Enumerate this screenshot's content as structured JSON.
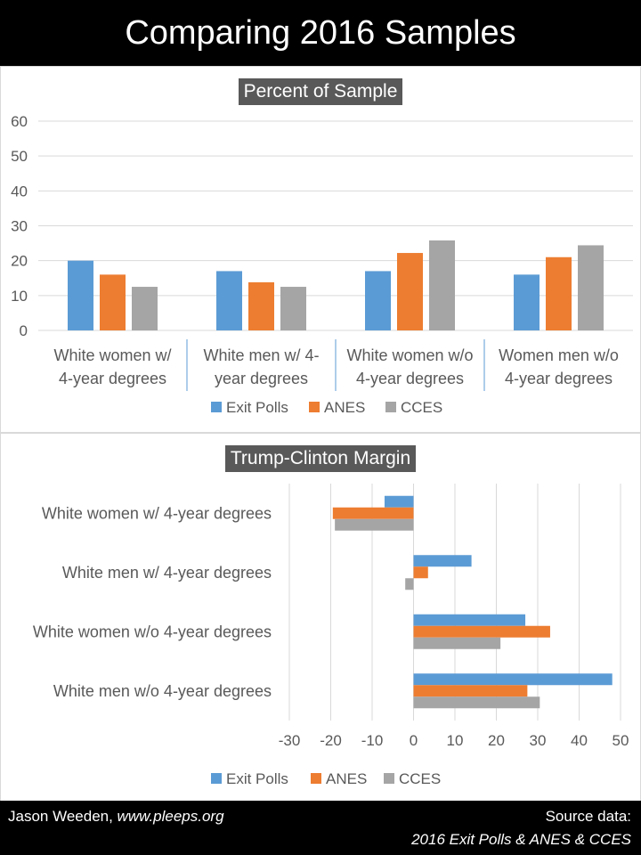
{
  "header": {
    "title": "Comparing 2016 Samples"
  },
  "colors": {
    "exit_polls": "#5b9bd5",
    "anes": "#ed7d31",
    "cces": "#a5a5a5"
  },
  "chart_data": [
    {
      "type": "bar",
      "title": "Percent of Sample",
      "categories": [
        [
          "White women w/",
          "4-year degrees"
        ],
        [
          "White men w/ 4-",
          "year degrees"
        ],
        [
          "White women w/o",
          "4-year degrees"
        ],
        [
          "Women men w/o",
          "4-year degrees"
        ]
      ],
      "series": [
        {
          "name": "Exit Polls",
          "values": [
            20,
            17,
            17,
            16
          ]
        },
        {
          "name": "ANES",
          "values": [
            16,
            13.8,
            22.2,
            21
          ]
        },
        {
          "name": "CCES",
          "values": [
            12.5,
            12.5,
            25.8,
            24.4
          ]
        }
      ],
      "ylim": [
        0,
        60
      ],
      "yticks": [
        0,
        10,
        20,
        30,
        40,
        50,
        60
      ],
      "legend_position": "bottom",
      "grid": true
    },
    {
      "type": "bar",
      "orientation": "horizontal",
      "title": "Trump-Clinton Margin",
      "categories": [
        "White women w/ 4-year degrees",
        "White men w/ 4-year degrees",
        "White women w/o 4-year degrees",
        "White men w/o 4-year degrees"
      ],
      "series": [
        {
          "name": "Exit Polls",
          "values": [
            -7,
            14,
            27,
            48
          ]
        },
        {
          "name": "ANES",
          "values": [
            -19.5,
            3.5,
            33,
            27.5
          ]
        },
        {
          "name": "CCES",
          "values": [
            -19,
            -2,
            21,
            30.5
          ]
        }
      ],
      "xlim": [
        -30,
        50
      ],
      "xticks": [
        -30,
        -20,
        -10,
        0,
        10,
        20,
        30,
        40,
        50
      ],
      "legend_position": "bottom",
      "grid": true
    }
  ],
  "footer": {
    "author": "Jason Weeden, ",
    "site": "www.pleeps.org",
    "source_label": "Source data:",
    "source": "2016 Exit Polls & ANES & CCES"
  }
}
